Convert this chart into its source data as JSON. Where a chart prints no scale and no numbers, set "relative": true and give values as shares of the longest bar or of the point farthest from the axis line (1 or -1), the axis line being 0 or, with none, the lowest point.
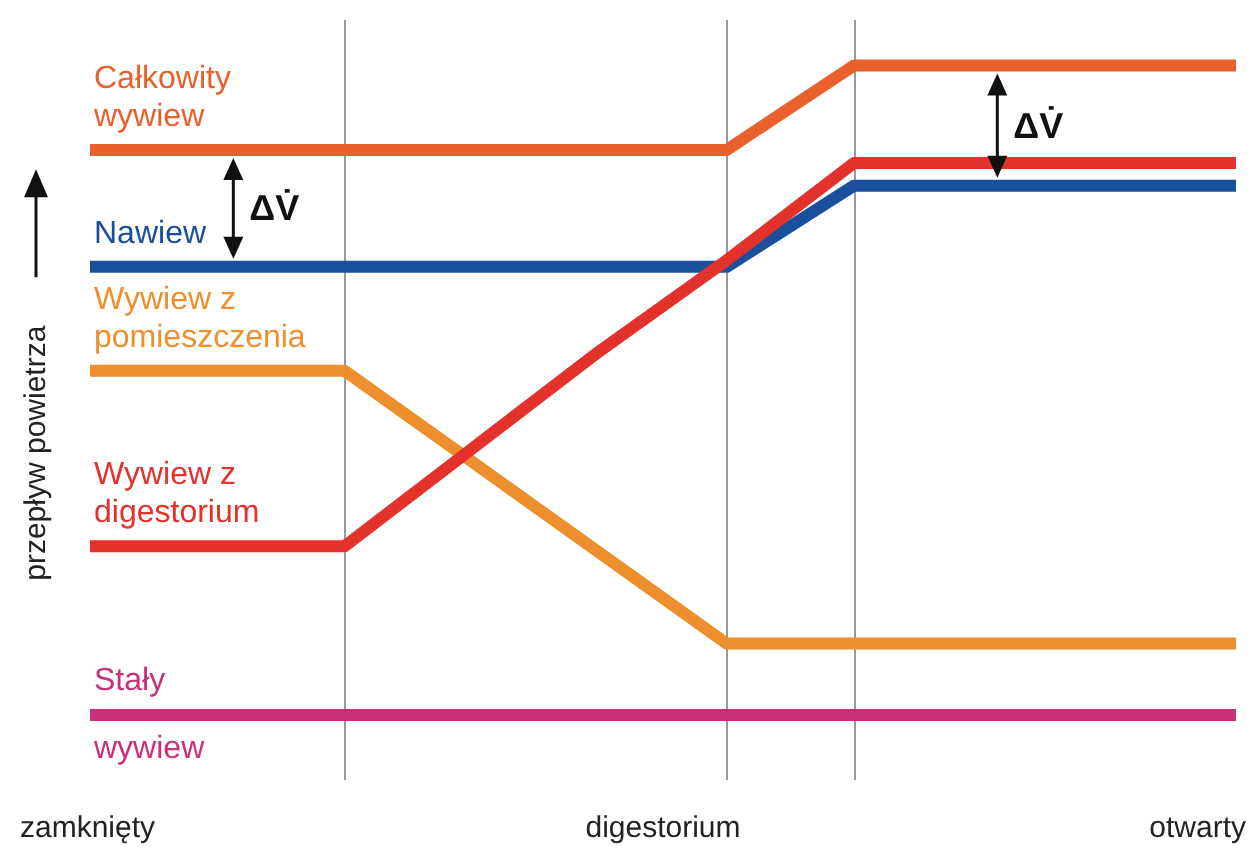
{
  "chart_data": {
    "type": "line",
    "relative": true,
    "ylabel": "przepływ powietrza",
    "xlabel": "digestorium",
    "categories": [
      null,
      null,
      null,
      null,
      null,
      null,
      null,
      null,
      null,
      null
    ],
    "series": [
      {
        "name": "Całkowity wywiew",
        "color": "#e8612c",
        "values": [
          0.87,
          0.87,
          0.87,
          0.87,
          0.87,
          0.87,
          1,
          1,
          1,
          1
        ]
      },
      {
        "name": "Nawiew",
        "color": "#1a4f9c",
        "values": [
          0.69,
          0.69,
          0.69,
          0.69,
          0.69,
          0.69,
          0.815,
          0.815,
          0.815,
          0.815
        ]
      },
      {
        "name": "Wywiew z pomieszczenia",
        "color": "#ee8f2d",
        "values": [
          0.53,
          0.53,
          0.53,
          0.39,
          0.25,
          0.11,
          0.11,
          0.11,
          0.11,
          0.11
        ]
      },
      {
        "name": "Wywiew z digestorium",
        "color": "#e2322b",
        "values": [
          0.26,
          0.26,
          0.26,
          0.41,
          0.56,
          0.7,
          0.85,
          0.85,
          0.85,
          0.85
        ]
      },
      {
        "name": "Stały wywiew",
        "color": "#c8317a",
        "values": [
          0,
          0,
          0,
          0,
          0,
          0,
          0,
          0,
          0,
          0
        ]
      }
    ],
    "annotations": [
      "ΔV̇",
      "ΔV̇",
      "zamknięty",
      "otwarty"
    ],
    "grid": "x",
    "legend": false,
    "marker": "none",
    "line_style": "solid"
  }
}
